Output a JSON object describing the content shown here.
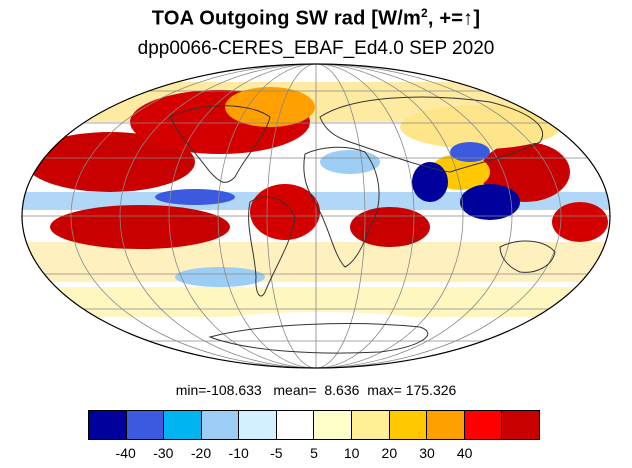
{
  "title": {
    "main_prefix": "TOA Outgoing SW rad [W/m",
    "superscript": "2",
    "main_suffix": ", +=",
    "arrow": "↑",
    "close": "]"
  },
  "subtitle": "dpp0066-CERES_EBAF_Ed4.0 SEP 2020",
  "stats": {
    "min_label": "min=",
    "min": "-108.633",
    "mean_label": "mean=",
    "mean": "8.636",
    "max_label": "max=",
    "max": "175.326"
  },
  "colorbar": {
    "colors": [
      "#00009c",
      "#3c5ae0",
      "#00b4f0",
      "#9ccdf5",
      "#d2f0ff",
      "#ffffff",
      "#ffffc8",
      "#fff096",
      "#ffc800",
      "#ffa000",
      "#ff0000",
      "#c80000"
    ],
    "labels": [
      "-40",
      "-30",
      "-20",
      "-10",
      "-5",
      "5",
      "10",
      "20",
      "30",
      "40"
    ]
  },
  "map": {
    "projection": "Mollweide",
    "region": "Global",
    "ocean_color": "#ffffff",
    "coast_color": "#333333",
    "grid_color": "#888888"
  }
}
